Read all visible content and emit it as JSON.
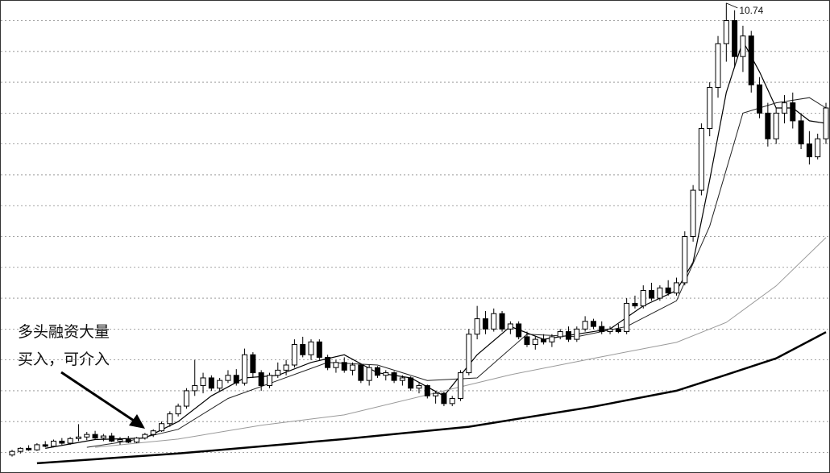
{
  "chart_data": {
    "type": "candlestick",
    "annotation": [
      "多头融资大量",
      "买入，可介入"
    ],
    "ylim": [
      1.6,
      10.8
    ],
    "gridlines": [
      2.0,
      2.6,
      3.2,
      3.8,
      4.4,
      5.0,
      5.6,
      6.2,
      6.8,
      7.4,
      8.0,
      8.6,
      9.2,
      9.8,
      10.4
    ],
    "up_color": "#ffffff",
    "down_color": "#000000",
    "open": [
      1.95,
      2.02,
      2.08,
      2.05,
      2.15,
      2.12,
      2.22,
      2.18,
      2.27,
      2.3,
      2.35,
      2.28,
      2.32,
      2.22,
      2.25,
      2.2,
      2.28,
      2.35,
      2.42,
      2.56,
      2.75,
      2.9,
      3.2,
      3.3,
      3.45,
      3.25,
      3.4,
      3.5,
      3.35,
      3.9,
      3.55,
      3.3,
      3.5,
      3.6,
      3.7,
      4.1,
      3.9,
      4.15,
      3.85,
      3.65,
      3.75,
      3.6,
      3.7,
      3.4,
      3.65,
      3.5,
      3.55,
      3.4,
      3.45,
      3.25,
      3.3,
      3.1,
      3.15,
      2.95,
      3.05,
      3.55,
      4.3,
      4.6,
      4.4,
      4.7,
      4.4,
      4.5,
      4.25,
      4.1,
      4.2,
      4.15,
      4.25,
      4.35,
      4.2,
      4.4,
      4.55,
      4.45,
      4.35,
      4.4,
      4.35,
      4.9,
      4.85,
      5.15,
      5.0,
      5.2,
      5.1,
      5.3,
      6.2,
      7.1,
      8.3,
      9.1,
      9.95,
      10.4,
      9.7,
      10.1,
      9.15,
      8.6,
      8.1,
      8.6,
      8.8,
      8.45,
      8.0,
      7.75,
      8.1
    ],
    "high": [
      2.05,
      2.1,
      2.14,
      2.18,
      2.22,
      2.25,
      2.28,
      2.3,
      2.55,
      2.4,
      2.42,
      2.36,
      2.38,
      2.3,
      2.32,
      2.3,
      2.38,
      2.45,
      2.6,
      2.8,
      2.95,
      3.25,
      3.8,
      3.55,
      3.5,
      3.45,
      3.6,
      3.62,
      4.02,
      3.95,
      3.6,
      3.55,
      3.75,
      3.8,
      4.2,
      4.25,
      4.2,
      4.2,
      3.9,
      3.8,
      3.85,
      3.75,
      3.72,
      3.7,
      3.68,
      3.6,
      3.58,
      3.5,
      3.48,
      3.35,
      3.32,
      3.2,
      3.18,
      3.1,
      3.6,
      4.4,
      4.85,
      4.75,
      4.8,
      4.75,
      4.55,
      4.55,
      4.35,
      4.25,
      4.3,
      4.3,
      4.4,
      4.45,
      4.45,
      4.65,
      4.6,
      4.55,
      4.45,
      4.5,
      5.0,
      5.05,
      5.25,
      5.3,
      5.25,
      5.35,
      5.4,
      6.3,
      7.2,
      8.4,
      9.2,
      10.1,
      10.74,
      10.6,
      10.3,
      10.2,
      9.3,
      8.8,
      8.7,
      8.95,
      9.0,
      8.6,
      8.25,
      8.2,
      8.8
    ],
    "low": [
      1.92,
      1.98,
      2.03,
      2.03,
      2.1,
      2.1,
      2.15,
      2.15,
      2.22,
      2.24,
      2.26,
      2.22,
      2.2,
      2.15,
      2.18,
      2.18,
      2.25,
      2.3,
      2.4,
      2.5,
      2.7,
      2.85,
      3.1,
      3.15,
      3.2,
      3.2,
      3.35,
      3.3,
      3.3,
      3.45,
      3.2,
      3.25,
      3.45,
      3.5,
      3.65,
      3.85,
      3.8,
      3.8,
      3.6,
      3.55,
      3.55,
      3.5,
      3.35,
      3.3,
      3.45,
      3.4,
      3.35,
      3.3,
      3.2,
      3.15,
      3.05,
      2.95,
      2.9,
      2.9,
      3.0,
      3.5,
      4.2,
      4.3,
      4.35,
      4.35,
      4.3,
      4.2,
      4.05,
      4.0,
      4.1,
      4.05,
      4.2,
      4.15,
      4.15,
      4.35,
      4.4,
      4.3,
      4.3,
      4.32,
      4.3,
      4.8,
      4.8,
      4.95,
      4.95,
      5.05,
      5.05,
      5.25,
      6.1,
      7.0,
      8.15,
      8.9,
      9.6,
      9.5,
      9.4,
      9.0,
      8.5,
      7.95,
      8.0,
      8.4,
      8.3,
      7.9,
      7.6,
      7.7,
      8.0
    ],
    "close": [
      2.02,
      2.08,
      2.05,
      2.15,
      2.12,
      2.22,
      2.18,
      2.27,
      2.3,
      2.35,
      2.28,
      2.32,
      2.22,
      2.25,
      2.2,
      2.28,
      2.35,
      2.42,
      2.56,
      2.75,
      2.9,
      3.2,
      3.3,
      3.45,
      3.25,
      3.4,
      3.5,
      3.35,
      3.9,
      3.55,
      3.3,
      3.5,
      3.6,
      3.7,
      4.1,
      3.9,
      4.15,
      3.85,
      3.65,
      3.75,
      3.6,
      3.7,
      3.4,
      3.65,
      3.5,
      3.55,
      3.4,
      3.45,
      3.25,
      3.3,
      3.1,
      3.15,
      2.95,
      3.05,
      3.55,
      4.3,
      4.6,
      4.4,
      4.7,
      4.4,
      4.5,
      4.25,
      4.1,
      4.2,
      4.15,
      4.25,
      4.35,
      4.2,
      4.4,
      4.55,
      4.45,
      4.35,
      4.4,
      4.35,
      4.9,
      4.85,
      5.15,
      5.0,
      5.2,
      5.1,
      5.3,
      6.2,
      7.1,
      8.3,
      9.1,
      9.95,
      10.4,
      9.7,
      10.1,
      9.15,
      8.6,
      8.1,
      8.6,
      8.8,
      8.45,
      8.0,
      7.75,
      8.1,
      8.7
    ],
    "lines": [
      {
        "color": "#000000",
        "line_width": 1.2,
        "x": [
          4,
          10,
          16,
          20,
          24,
          28,
          32,
          36,
          40,
          44,
          48,
          52,
          56,
          60,
          64,
          68,
          72,
          76,
          80,
          82,
          84,
          86,
          88,
          90,
          92,
          94,
          96,
          98
        ],
        "values": [
          2.08,
          2.25,
          2.28,
          2.6,
          3.1,
          3.45,
          3.5,
          3.75,
          3.9,
          3.55,
          3.45,
          3.1,
          3.9,
          4.45,
          4.2,
          4.3,
          4.4,
          4.85,
          5.15,
          5.7,
          7.3,
          9.0,
          10.0,
          9.4,
          8.7,
          8.7,
          8.45,
          8.4
        ]
      },
      {
        "color": "#222222",
        "line_width": 1,
        "x": [
          9,
          14,
          20,
          26,
          32,
          38,
          44,
          50,
          56,
          62,
          68,
          74,
          80,
          84,
          88,
          92,
          96,
          98
        ],
        "values": [
          2.1,
          2.22,
          2.45,
          3.05,
          3.4,
          3.75,
          3.7,
          3.4,
          3.45,
          4.3,
          4.25,
          4.45,
          4.95,
          6.4,
          8.6,
          8.8,
          8.9,
          8.7
        ]
      },
      {
        "color": "#999999",
        "line_width": 1,
        "x": [
          10,
          20,
          30,
          40,
          50,
          60,
          70,
          80,
          86,
          92,
          98
        ],
        "values": [
          2.1,
          2.26,
          2.53,
          2.73,
          3.12,
          3.51,
          3.83,
          4.14,
          4.53,
          5.24,
          6.18
        ]
      },
      {
        "color": "#000000",
        "line_width": 2.5,
        "x": [
          3,
          20,
          40,
          55,
          70,
          80,
          86,
          92,
          98
        ],
        "values": [
          1.79,
          1.98,
          2.26,
          2.5,
          2.89,
          3.2,
          3.51,
          3.83,
          4.34
        ]
      }
    ]
  }
}
